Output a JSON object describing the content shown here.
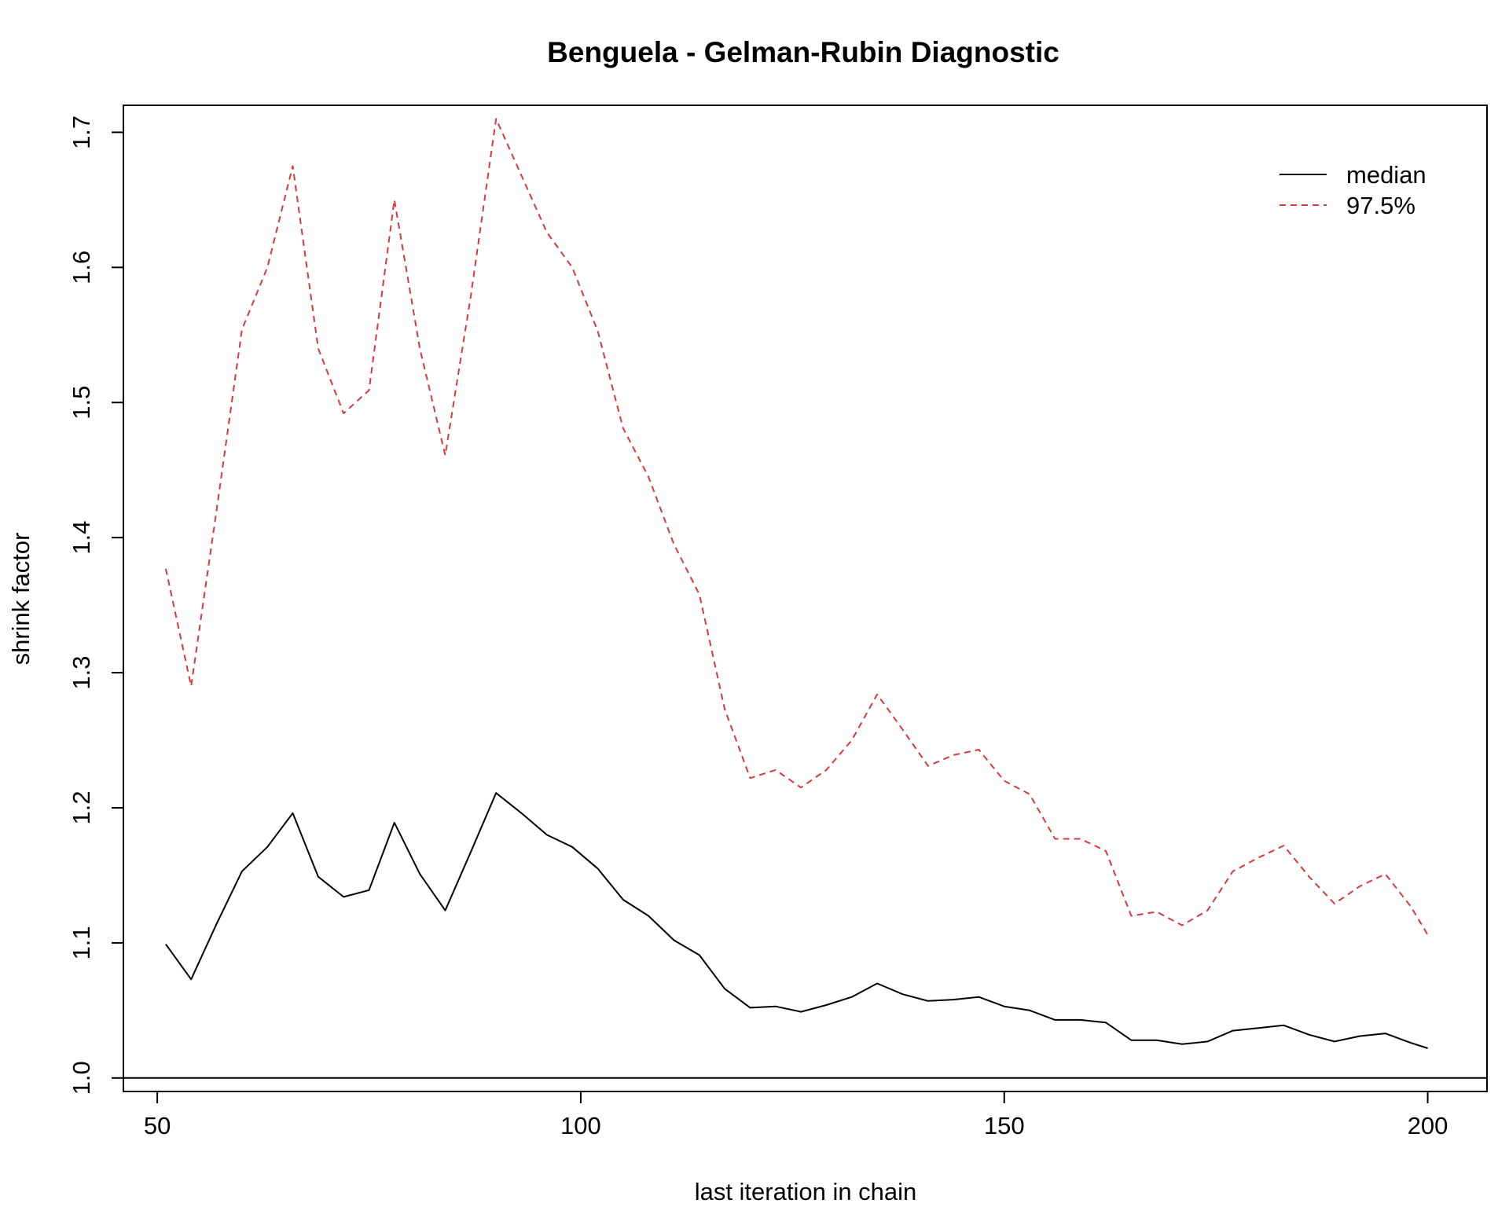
{
  "chart_data": {
    "type": "line",
    "title": "Benguela - Gelman-Rubin Diagnostic",
    "xlabel": "last iteration in chain",
    "ylabel": "shrink factor",
    "xlim": [
      46,
      207
    ],
    "ylim": [
      0.99,
      1.72
    ],
    "x_ticks": [
      50,
      100,
      150,
      200
    ],
    "x_tick_labels": [
      "50",
      "100",
      "150",
      "200"
    ],
    "y_ticks": [
      1.0,
      1.1,
      1.2,
      1.3,
      1.4,
      1.5,
      1.6,
      1.7
    ],
    "y_tick_labels": [
      "1.0",
      "1.1",
      "1.2",
      "1.3",
      "1.4",
      "1.5",
      "1.6",
      "1.7"
    ],
    "reference_line": 1.0,
    "grid": false,
    "legend_position": "top-right",
    "x": [
      51,
      54,
      57,
      60,
      63,
      66,
      69,
      72,
      75,
      78,
      81,
      84,
      87,
      90,
      93,
      96,
      99,
      102,
      105,
      108,
      111,
      114,
      117,
      120,
      123,
      126,
      129,
      132,
      135,
      138,
      141,
      144,
      147,
      150,
      153,
      156,
      159,
      162,
      165,
      168,
      171,
      174,
      177,
      180,
      183,
      186,
      189,
      192,
      195,
      198,
      200
    ],
    "series": [
      {
        "name": "median",
        "color": "#000000",
        "dash": "solid",
        "values": [
          1.099,
          1.073,
          1.114,
          1.153,
          1.171,
          1.196,
          1.149,
          1.134,
          1.139,
          1.189,
          1.151,
          1.124,
          1.167,
          1.211,
          1.196,
          1.18,
          1.171,
          1.155,
          1.132,
          1.12,
          1.102,
          1.091,
          1.066,
          1.052,
          1.053,
          1.049,
          1.054,
          1.06,
          1.07,
          1.062,
          1.057,
          1.058,
          1.06,
          1.053,
          1.05,
          1.043,
          1.043,
          1.041,
          1.028,
          1.028,
          1.025,
          1.027,
          1.035,
          1.037,
          1.039,
          1.032,
          1.027,
          1.031,
          1.033,
          1.026,
          1.022
        ]
      },
      {
        "name": "97.5%",
        "color": "#d9383a",
        "dash": "dashed",
        "values": [
          1.377,
          1.29,
          1.42,
          1.554,
          1.6,
          1.675,
          1.54,
          1.492,
          1.509,
          1.65,
          1.54,
          1.461,
          1.578,
          1.71,
          1.668,
          1.626,
          1.6,
          1.553,
          1.481,
          1.445,
          1.395,
          1.358,
          1.273,
          1.222,
          1.228,
          1.215,
          1.228,
          1.25,
          1.284,
          1.258,
          1.231,
          1.239,
          1.243,
          1.22,
          1.21,
          1.177,
          1.177,
          1.168,
          1.12,
          1.123,
          1.113,
          1.124,
          1.153,
          1.163,
          1.172,
          1.149,
          1.129,
          1.142,
          1.151,
          1.127,
          1.106
        ]
      }
    ]
  }
}
